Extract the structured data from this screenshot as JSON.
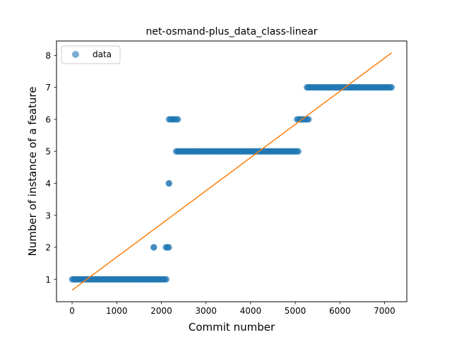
{
  "chart_data": {
    "type": "scatter",
    "title": "net-osmand-plus_data_class-linear",
    "xlabel": "Commit number",
    "ylabel": "Number of instance of a feature",
    "xlim": [
      -350,
      7500
    ],
    "ylim": [
      0.3,
      8.45
    ],
    "xticks": [
      0,
      1000,
      2000,
      3000,
      4000,
      5000,
      6000,
      7000
    ],
    "yticks": [
      1,
      2,
      3,
      4,
      5,
      6,
      7,
      8
    ],
    "grid": false,
    "legend": {
      "position": "upper-left",
      "entries": [
        {
          "label": "data",
          "marker": "circle",
          "color": "#1f77b4"
        }
      ]
    },
    "series": [
      {
        "name": "data",
        "kind": "scatter",
        "color": "#1f77b4",
        "segments": [
          {
            "x_start": 0,
            "x_end": 2110,
            "y": 1
          },
          {
            "x_start": 1830,
            "x_end": 1830,
            "y": 2
          },
          {
            "x_start": 2100,
            "x_end": 2170,
            "y": 2
          },
          {
            "x_start": 2170,
            "x_end": 2170,
            "y": 4
          },
          {
            "x_start": 2170,
            "x_end": 2370,
            "y": 6
          },
          {
            "x_start": 2330,
            "x_end": 5070,
            "y": 5
          },
          {
            "x_start": 5040,
            "x_end": 5300,
            "y": 6
          },
          {
            "x_start": 5260,
            "x_end": 7160,
            "y": 7
          }
        ]
      },
      {
        "name": "",
        "kind": "line",
        "color": "#ff7f0e",
        "x": [
          0,
          7160
        ],
        "y": [
          0.66,
          8.08
        ]
      }
    ]
  }
}
